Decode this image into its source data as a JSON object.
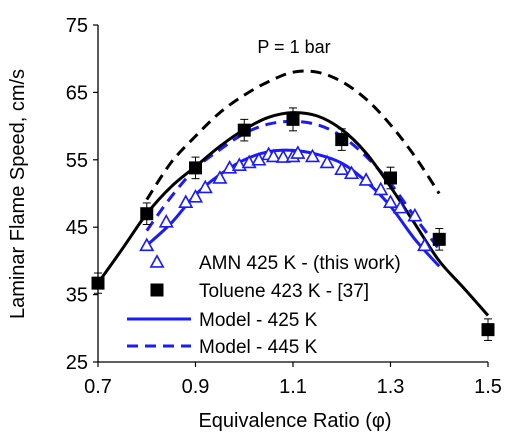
{
  "chart_data": {
    "type": "scatter",
    "annotation": "P = 1 bar",
    "xlabel": "Equivalence Ratio (φ)",
    "ylabel": "Laminar Flame Speed, cm/s",
    "xlim": [
      0.7,
      1.5
    ],
    "ylim": [
      25,
      75
    ],
    "xticks": [
      "0.7",
      "0.9",
      "1.1",
      "1.3",
      "1.5"
    ],
    "yticks": [
      "25",
      "35",
      "45",
      "55",
      "65",
      "75"
    ],
    "colors": {
      "blue": "#1a1aff",
      "black": "#000000"
    },
    "legend_position": "bottom-center",
    "series": [
      {
        "name": "AMN 425 K - (this work)",
        "kind": "markers",
        "marker": "open-triangle",
        "color": "#1a1aff",
        "x": [
          0.8,
          0.84,
          0.88,
          0.9,
          0.92,
          0.95,
          0.97,
          0.99,
          1.01,
          1.03,
          1.05,
          1.06,
          1.08,
          1.1,
          1.11,
          1.14,
          1.17,
          1.2,
          1.22,
          1.25,
          1.28,
          1.3,
          1.32,
          1.35,
          1.37
        ],
        "y": [
          42.3,
          45.8,
          48.7,
          49.5,
          50.9,
          52.3,
          53.8,
          54.2,
          54.6,
          55.0,
          55.8,
          55.5,
          55.4,
          55.5,
          56.0,
          55.5,
          54.6,
          53.6,
          53.0,
          52.0,
          50.6,
          48.7,
          47.9,
          46.7,
          42.3
        ]
      },
      {
        "name": "Toluene 423 K - [37]",
        "kind": "markers",
        "marker": "filled-square",
        "color": "#000000",
        "x": [
          0.7,
          0.8,
          0.9,
          1.0,
          1.1,
          1.2,
          1.3,
          1.4,
          1.5
        ],
        "y": [
          36.7,
          47.0,
          53.8,
          59.4,
          61.0,
          58.0,
          52.3,
          43.2,
          29.8
        ],
        "error": [
          1.5,
          1.6,
          1.6,
          1.6,
          1.7,
          1.6,
          1.6,
          1.6,
          1.6
        ]
      },
      {
        "name": "Model - 425 K",
        "kind": "line",
        "line_style": "solid",
        "color": "#1a1aff",
        "x": [
          0.8,
          0.85,
          0.9,
          0.95,
          1.0,
          1.05,
          1.1,
          1.15,
          1.2,
          1.25,
          1.3,
          1.35,
          1.4
        ],
        "y": [
          42.3,
          45.6,
          49.8,
          52.8,
          55.0,
          56.2,
          56.4,
          55.8,
          54.5,
          51.8,
          48.1,
          43.2,
          39.2
        ]
      },
      {
        "name": "Model - 445 K",
        "kind": "line",
        "line_style": "dashed",
        "color": "#1a1aff",
        "x": [
          0.8,
          0.85,
          0.9,
          0.95,
          1.0,
          1.05,
          1.1,
          1.15,
          1.2,
          1.25,
          1.3,
          1.35,
          1.4
        ],
        "y": [
          44.5,
          49.5,
          53.7,
          56.5,
          58.9,
          60.3,
          60.7,
          60.2,
          58.5,
          55.5,
          51.5,
          46.5,
          41.7
        ]
      },
      {
        "kind": "line",
        "line_style": "solid",
        "color": "#000000",
        "x": [
          0.7,
          0.75,
          0.8,
          0.85,
          0.9,
          0.95,
          1.0,
          1.05,
          1.1,
          1.15,
          1.2,
          1.25,
          1.3,
          1.35,
          1.4,
          1.45,
          1.5
        ],
        "y": [
          36.7,
          41.8,
          47.0,
          51.0,
          54.0,
          57.0,
          59.5,
          61.3,
          62.0,
          61.5,
          59.5,
          56.0,
          51.0,
          45.5,
          40.0,
          36.0,
          31.9
        ]
      },
      {
        "kind": "line",
        "line_style": "dashed",
        "color": "#000000",
        "x": [
          0.8,
          0.85,
          0.9,
          0.95,
          1.0,
          1.05,
          1.1,
          1.15,
          1.2,
          1.25,
          1.3,
          1.35,
          1.4
        ],
        "y": [
          49.1,
          54.6,
          58.5,
          62.0,
          64.6,
          66.6,
          68.0,
          68.0,
          66.6,
          64.0,
          60.2,
          55.5,
          50.0
        ]
      }
    ]
  }
}
